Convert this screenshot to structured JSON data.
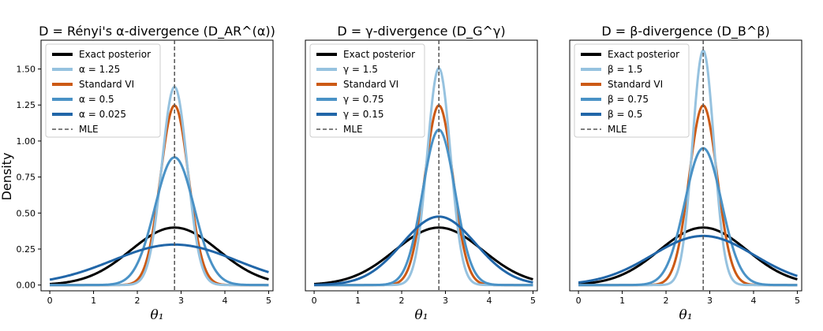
{
  "figure": {
    "ylabel": "Density",
    "xlabel": "θ₁"
  },
  "chart_data": [
    {
      "type": "line",
      "title": "D = Rényi's α-divergence (D_AR^(α))",
      "xlabel": "θ₁",
      "ylabel": "Density",
      "xlim": [
        -0.2,
        5.1
      ],
      "ylim": [
        -0.04,
        1.7
      ],
      "x_ticks": [
        "0",
        "1",
        "2",
        "3",
        "4",
        "5"
      ],
      "y_ticks": [
        "0.00",
        "0.25",
        "0.50",
        "0.75",
        "1.00",
        "1.25",
        "1.50"
      ],
      "grid": false,
      "legend_position": "top-left",
      "mle": 2.85,
      "series": [
        {
          "name": "Exact posterior",
          "mean": 2.85,
          "sd": 1.0,
          "color": "#000000"
        },
        {
          "name": "α = 1.25",
          "mean": 2.85,
          "sd": 0.29,
          "color": "#96c2df"
        },
        {
          "name": "Standard VI",
          "mean": 2.85,
          "sd": 0.32,
          "color": "#cc5a15"
        },
        {
          "name": "α = 0.5",
          "mean": 2.85,
          "sd": 0.45,
          "color": "#4a92c6"
        },
        {
          "name": "α = 0.025",
          "mean": 2.85,
          "sd": 1.42,
          "color": "#2166a8"
        },
        {
          "name": "MLE",
          "dashed": true,
          "color": "#555555"
        }
      ]
    },
    {
      "type": "line",
      "title": "D = γ-divergence (D_G^γ)",
      "xlabel": "θ₁",
      "xlim": [
        -0.2,
        5.1
      ],
      "ylim": [
        -0.04,
        1.7
      ],
      "x_ticks": [
        "0",
        "1",
        "2",
        "3",
        "4",
        "5"
      ],
      "grid": false,
      "legend_position": "top-left",
      "mle": 2.85,
      "series": [
        {
          "name": "Exact posterior",
          "mean": 2.85,
          "sd": 1.0,
          "color": "#000000"
        },
        {
          "name": "γ = 1.5",
          "mean": 2.85,
          "sd": 0.265,
          "color": "#96c2df"
        },
        {
          "name": "Standard VI",
          "mean": 2.85,
          "sd": 0.32,
          "color": "#cc5a15"
        },
        {
          "name": "γ = 0.75",
          "mean": 2.85,
          "sd": 0.37,
          "color": "#4a92c6"
        },
        {
          "name": "γ = 0.15",
          "mean": 2.85,
          "sd": 0.84,
          "color": "#2166a8"
        },
        {
          "name": "MLE",
          "dashed": true,
          "color": "#555555"
        }
      ]
    },
    {
      "type": "line",
      "title": "D = β-divergence (D_B^β)",
      "xlabel": "θ₁",
      "xlim": [
        -0.2,
        5.1
      ],
      "ylim": [
        -0.04,
        1.7
      ],
      "x_ticks": [
        "0",
        "1",
        "2",
        "3",
        "4",
        "5"
      ],
      "grid": false,
      "legend_position": "top-left",
      "mle": 2.85,
      "series": [
        {
          "name": "Exact posterior",
          "mean": 2.85,
          "sd": 1.0,
          "color": "#000000"
        },
        {
          "name": "β = 1.5",
          "mean": 2.85,
          "sd": 0.245,
          "color": "#96c2df"
        },
        {
          "name": "Standard VI",
          "mean": 2.85,
          "sd": 0.32,
          "color": "#cc5a15"
        },
        {
          "name": "β = 0.75",
          "mean": 2.85,
          "sd": 0.42,
          "color": "#4a92c6"
        },
        {
          "name": "β = 0.5",
          "mean": 2.85,
          "sd": 1.17,
          "color": "#2166a8"
        },
        {
          "name": "MLE",
          "dashed": true,
          "color": "#555555"
        }
      ]
    }
  ]
}
